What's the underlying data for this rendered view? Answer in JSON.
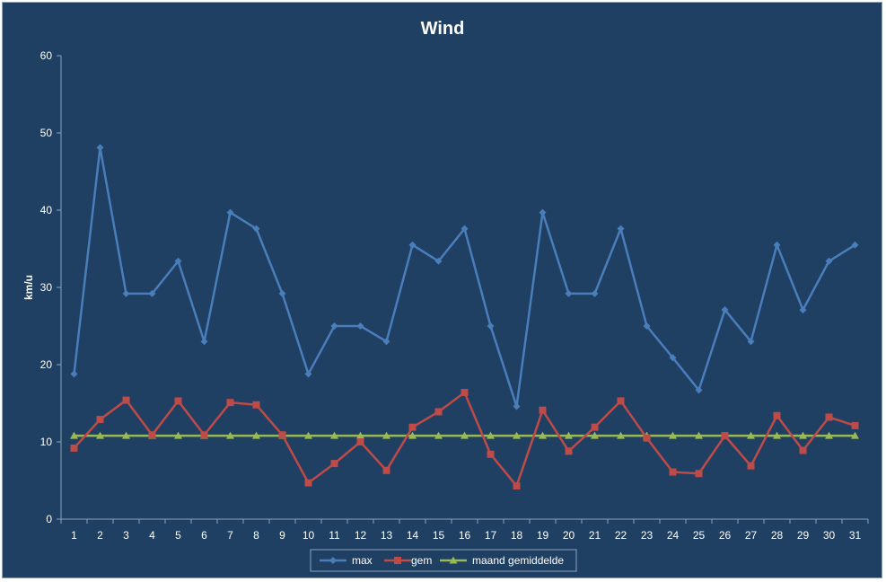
{
  "chart_data": {
    "type": "line",
    "title": "Wind",
    "xlabel": "",
    "ylabel": "km/u",
    "ylim": [
      0,
      60
    ],
    "yticks": [
      0,
      10,
      20,
      30,
      40,
      50,
      60
    ],
    "x": [
      "1",
      "2",
      "3",
      "4",
      "5",
      "6",
      "7",
      "8",
      "9",
      "10",
      "11",
      "12",
      "13",
      "14",
      "15",
      "16",
      "17",
      "18",
      "19",
      "20",
      "21",
      "22",
      "23",
      "24",
      "25",
      "26",
      "27",
      "28",
      "29",
      "30",
      "31"
    ],
    "series": [
      {
        "name": "max",
        "color": "#4a7ebb",
        "marker": "diamond",
        "values": [
          18.8,
          48.1,
          29.2,
          29.2,
          33.4,
          23.0,
          39.7,
          37.6,
          29.2,
          18.8,
          25.0,
          25.0,
          23.0,
          35.5,
          33.4,
          37.6,
          25.0,
          14.6,
          39.7,
          29.2,
          29.2,
          37.6,
          25.0,
          20.9,
          16.7,
          27.1,
          23.0,
          35.5,
          27.1,
          33.4,
          35.5
        ]
      },
      {
        "name": "gem",
        "color": "#be4b48",
        "marker": "square",
        "values": [
          9.2,
          12.9,
          15.4,
          10.9,
          15.3,
          10.9,
          15.1,
          14.8,
          10.9,
          4.7,
          7.2,
          10.0,
          6.3,
          11.9,
          13.9,
          16.4,
          8.4,
          4.3,
          14.1,
          8.8,
          11.9,
          15.3,
          10.5,
          6.1,
          5.9,
          10.8,
          6.9,
          13.4,
          8.9,
          13.2,
          12.1
        ]
      },
      {
        "name": "maand gemiddelde",
        "color": "#98b954",
        "marker": "triangle",
        "values": [
          10.8,
          10.8,
          10.8,
          10.8,
          10.8,
          10.8,
          10.8,
          10.8,
          10.8,
          10.8,
          10.8,
          10.8,
          10.8,
          10.8,
          10.8,
          10.8,
          10.8,
          10.8,
          10.8,
          10.8,
          10.8,
          10.8,
          10.8,
          10.8,
          10.8,
          10.8,
          10.8,
          10.8,
          10.8,
          10.8,
          10.8
        ]
      }
    ],
    "legend": "bottom",
    "grid": false
  },
  "colors": {
    "background": "#1f3f63",
    "axis": "#8ea3bb",
    "text": "#ffffff"
  }
}
